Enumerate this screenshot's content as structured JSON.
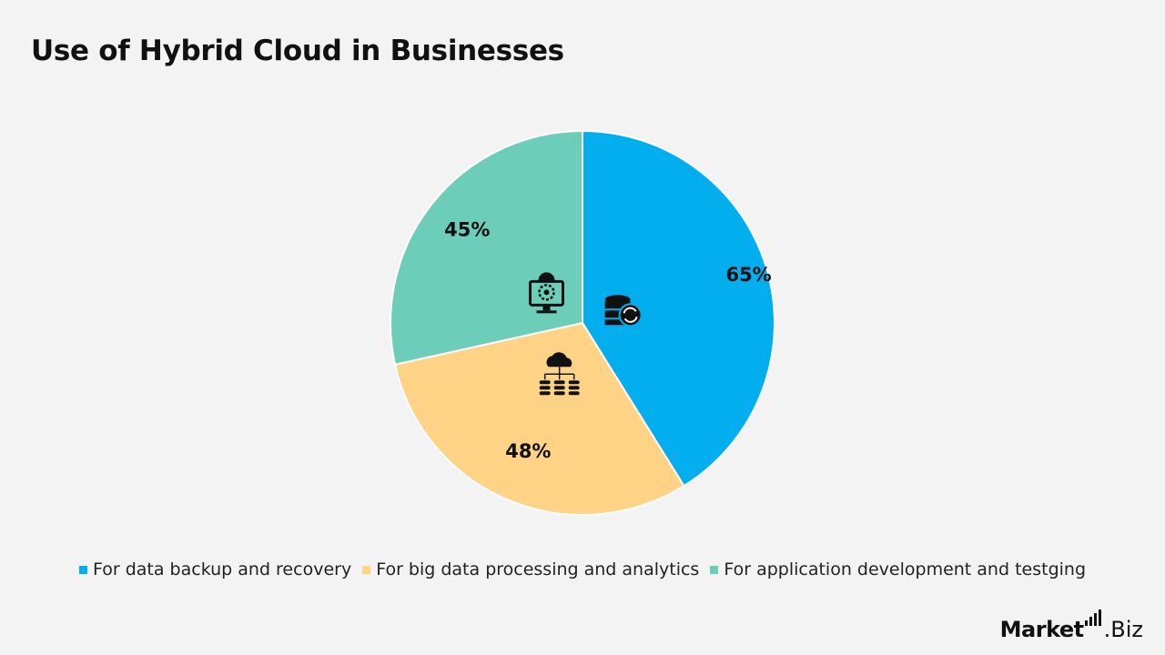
{
  "title": "Use of Hybrid Cloud in Businesses",
  "chart_data": {
    "type": "pie",
    "title": "Use of Hybrid Cloud in Businesses",
    "slices": [
      {
        "label": "For data backup and recovery",
        "value": 65,
        "display": "65%",
        "color": "#03aeef",
        "icon": "database-sync-icon"
      },
      {
        "label": "For big data processing and analytics",
        "value": 48,
        "display": "48%",
        "color": "#fed386",
        "icon": "cloud-database-network-icon"
      },
      {
        "label": "For application development and testging",
        "value": 45,
        "display": "45%",
        "color": "#6ccdb9",
        "icon": "monitor-gear-icon"
      }
    ],
    "legend_position": "bottom"
  },
  "brand": {
    "bold": "Market",
    "light": ".Biz"
  }
}
